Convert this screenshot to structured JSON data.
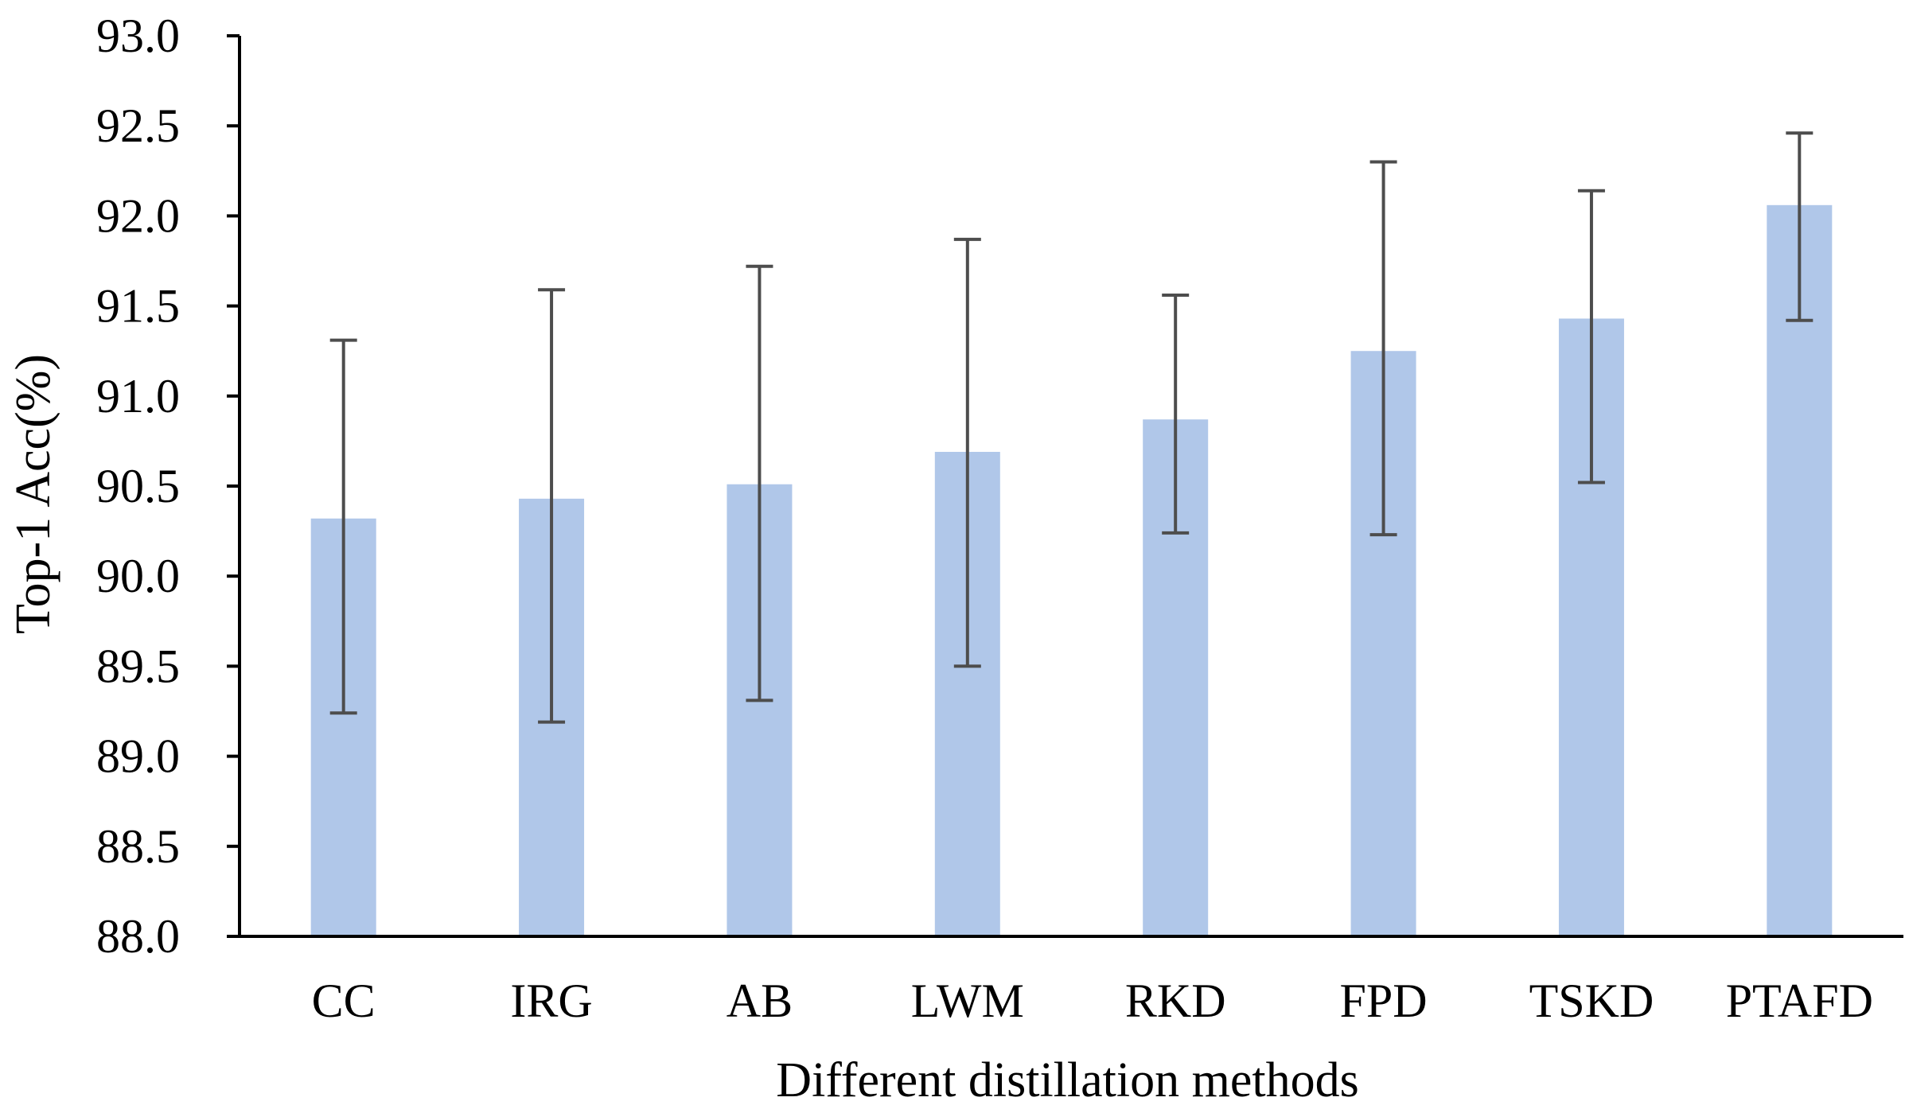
{
  "chart_data": {
    "type": "bar",
    "title": "",
    "xlabel": "Different distillation methods",
    "ylabel": "Top-1 Acc(%)",
    "ylim": [
      88.0,
      93.0
    ],
    "yticks": [
      "88.0",
      "88.5",
      "89.0",
      "89.5",
      "90.0",
      "90.5",
      "91.0",
      "91.5",
      "92.0",
      "92.5",
      "93.0"
    ],
    "ytick_values": [
      88.0,
      88.5,
      89.0,
      89.5,
      90.0,
      90.5,
      91.0,
      91.5,
      92.0,
      92.5,
      93.0
    ],
    "grid": false,
    "categories": [
      "CC",
      "IRG",
      "AB",
      "LWM",
      "RKD",
      "FPD",
      "TSKD",
      "PTAFD"
    ],
    "values": [
      90.32,
      90.43,
      90.51,
      90.69,
      90.87,
      91.25,
      91.43,
      92.06
    ],
    "error_low": [
      89.24,
      89.19,
      89.31,
      89.5,
      90.24,
      90.23,
      90.52,
      91.42
    ],
    "error_high": [
      91.31,
      91.59,
      91.72,
      91.87,
      91.56,
      92.3,
      92.14,
      92.46
    ],
    "bar_color": "#b0c7e9",
    "error_color": "#4d4d4d",
    "axis_color": "#000000"
  }
}
